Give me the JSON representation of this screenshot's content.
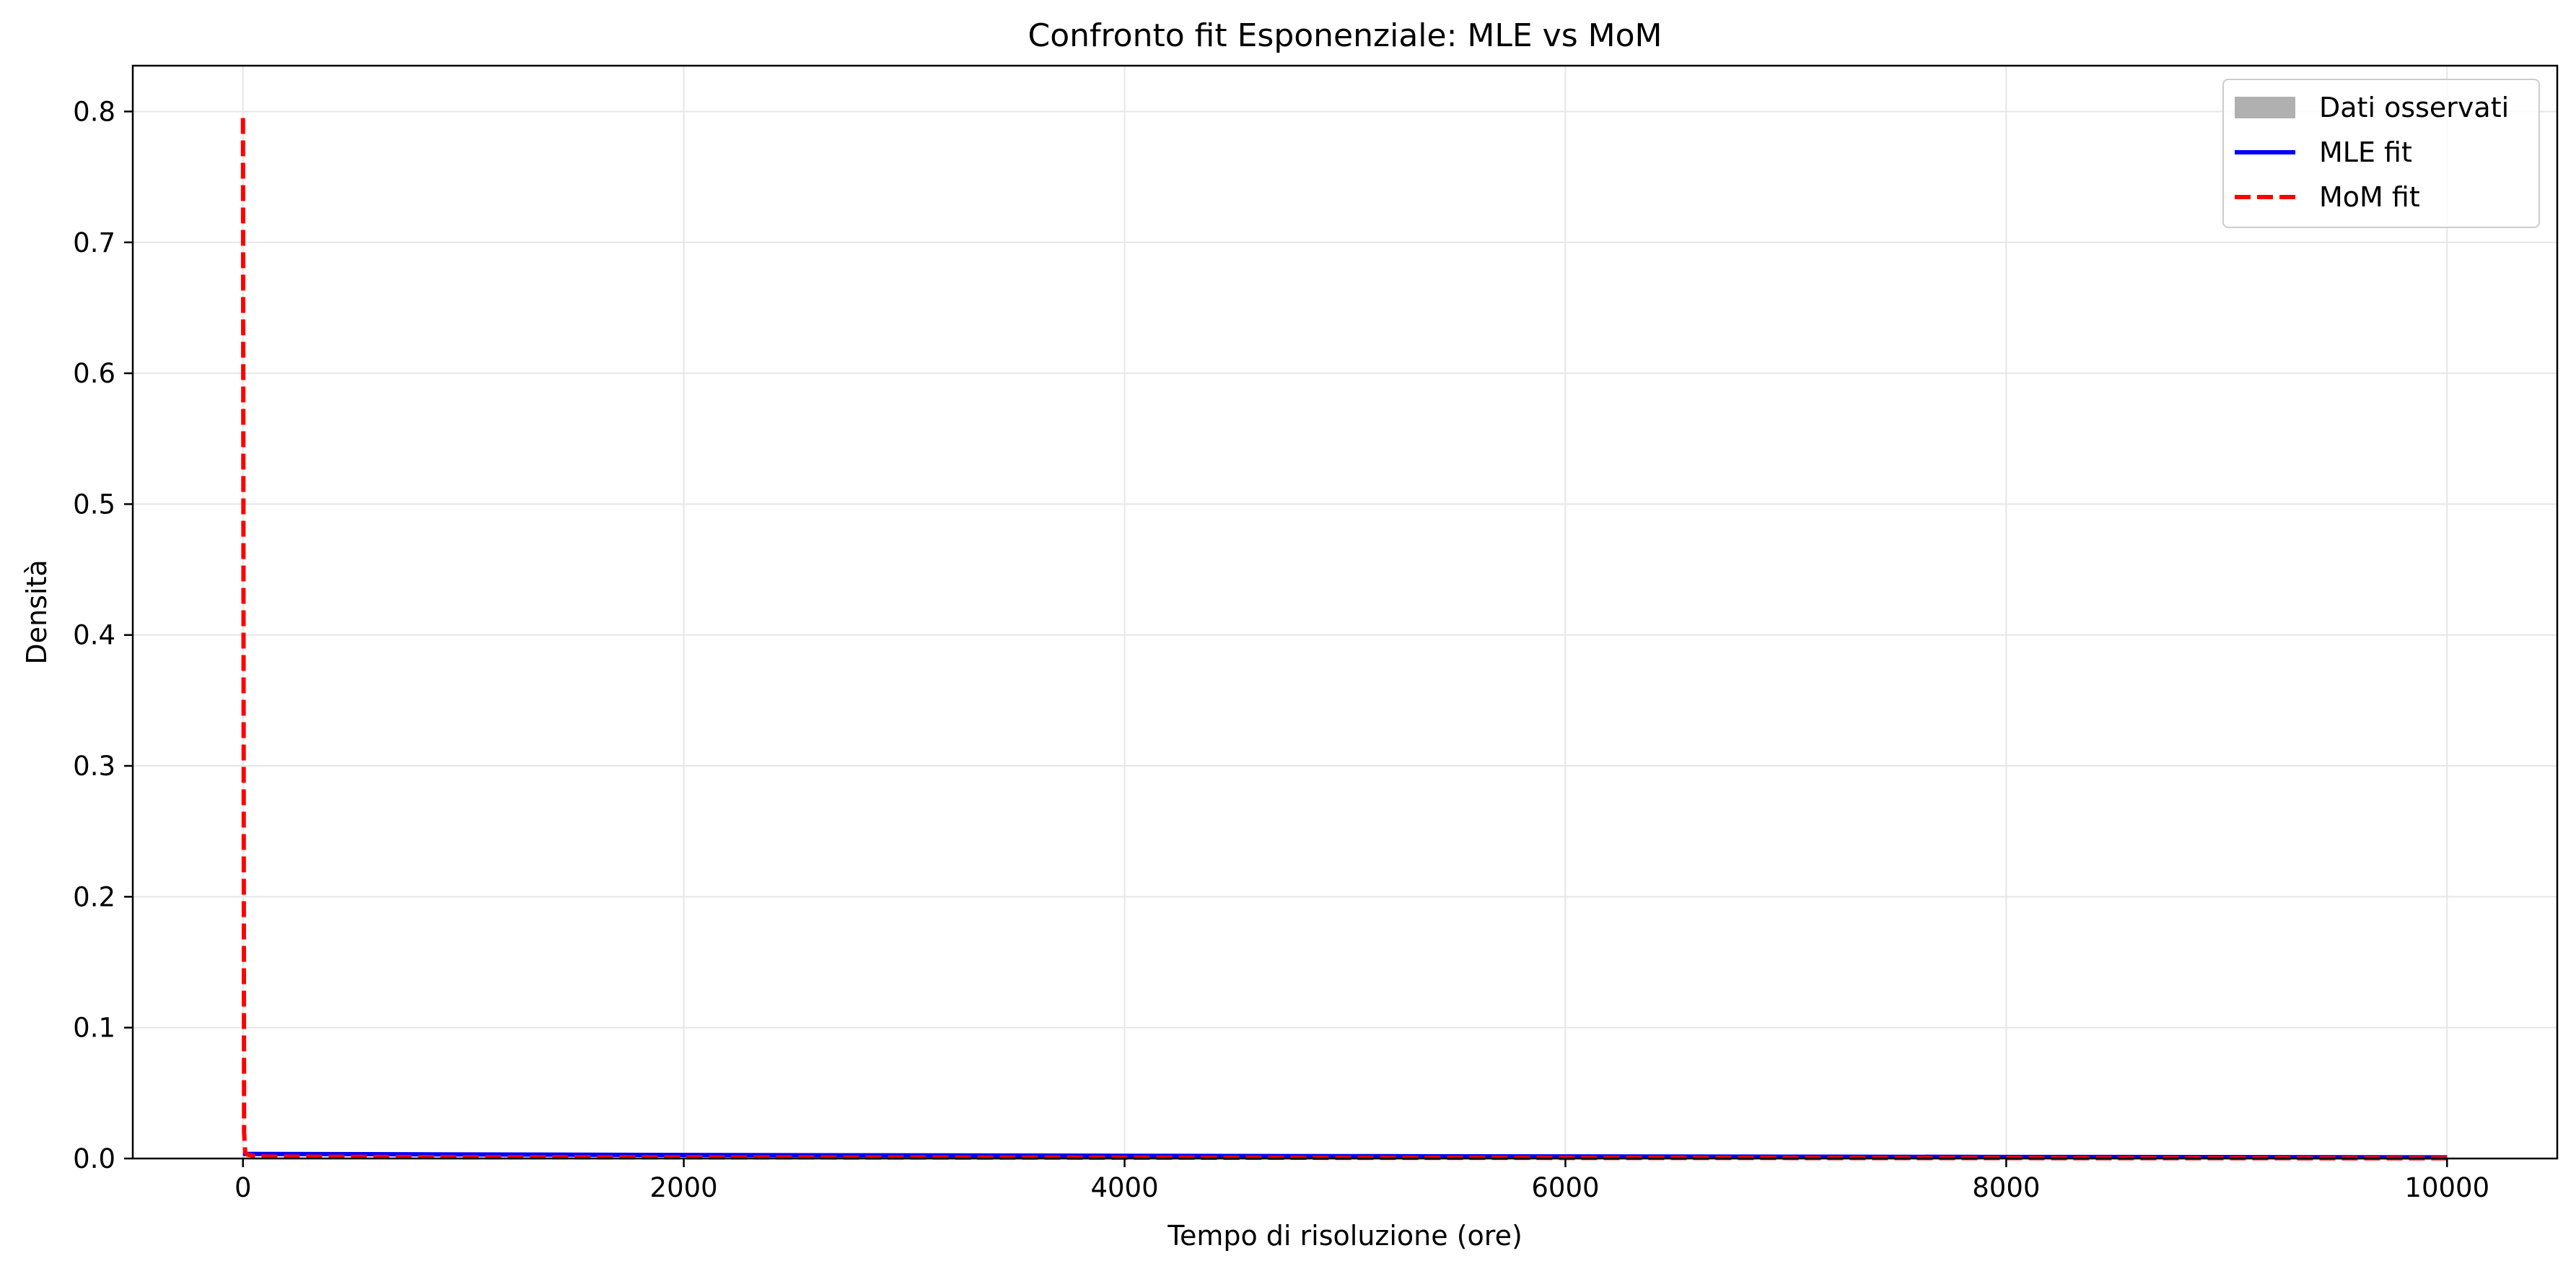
{
  "chart_data": {
    "type": "line",
    "title": "Confronto fit Esponenziale: MLE vs MoM",
    "xlabel": "Tempo di risoluzione (ore)",
    "ylabel": "Densità",
    "xlim": [
      -500,
      10500
    ],
    "ylim": [
      0,
      0.835
    ],
    "xticks": [
      0,
      2000,
      4000,
      6000,
      8000,
      10000
    ],
    "xtick_labels": [
      "0",
      "2000",
      "4000",
      "6000",
      "8000",
      "10000"
    ],
    "yticks": [
      0.0,
      0.1,
      0.2,
      0.3,
      0.4,
      0.5,
      0.6,
      0.7,
      0.8
    ],
    "ytick_labels": [
      "0.0",
      "0.1",
      "0.2",
      "0.3",
      "0.4",
      "0.5",
      "0.6",
      "0.7",
      "0.8"
    ],
    "grid": true,
    "legend_position": "top-right",
    "series": [
      {
        "name": "Dati osservati",
        "kind": "histogram",
        "color": "#b0b0b0",
        "x": [
          0,
          10000
        ],
        "values": [
          0.001,
          0.0
        ]
      },
      {
        "name": "MLE fit",
        "kind": "line",
        "style": "solid",
        "color": "#0000ff",
        "x": [
          0,
          1000,
          2000,
          3000,
          4000,
          5000,
          6000,
          7000,
          8000,
          9000,
          10000
        ],
        "values": [
          0.0035,
          0.0031,
          0.0027,
          0.0024,
          0.0021,
          0.0018,
          0.0016,
          0.0014,
          0.0012,
          0.0011,
          0.0009
        ]
      },
      {
        "name": "MoM fit",
        "kind": "line",
        "style": "dashed",
        "color": "#ff0000",
        "x": [
          0,
          5,
          10,
          20,
          50,
          100,
          1000,
          5000,
          10000
        ],
        "values": [
          0.795,
          0.02,
          0.005,
          0.003,
          0.002,
          0.0015,
          0.001,
          0.0005,
          0.0002
        ]
      }
    ]
  }
}
